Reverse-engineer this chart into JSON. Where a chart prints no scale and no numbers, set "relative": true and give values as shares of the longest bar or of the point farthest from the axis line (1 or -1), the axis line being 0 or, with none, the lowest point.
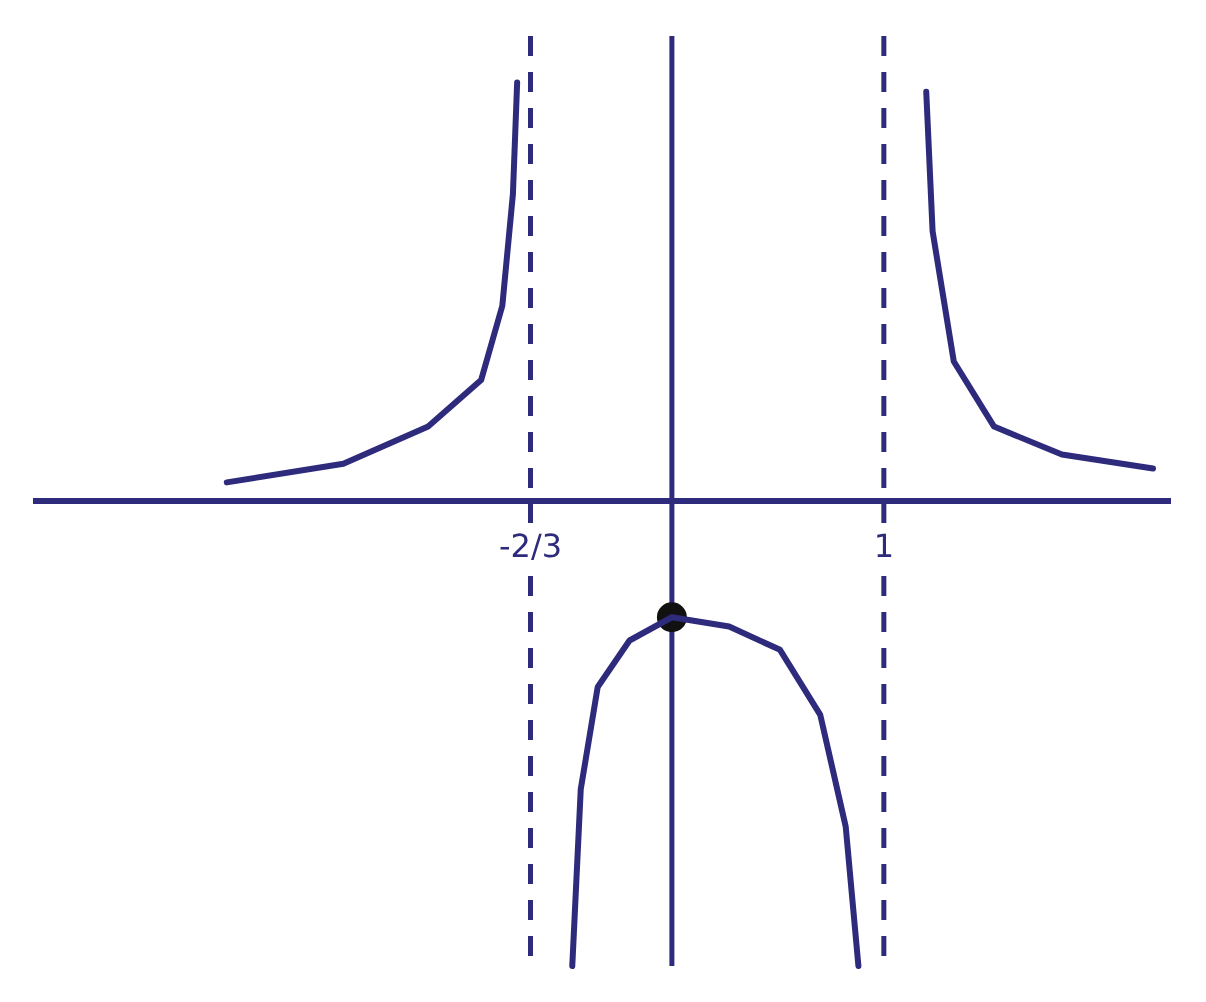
{
  "chart_data": {
    "type": "line",
    "relative": true,
    "xlim": [
      -3,
      2.35
    ],
    "xticks": [
      {
        "value": -0.667,
        "label": "-2/3"
      },
      1
    ],
    "tick_labels": "x",
    "grid": false,
    "legend": false,
    "marker": "none",
    "line_style": "solid",
    "series": [
      {
        "color": "#2e2a7c",
        "x": [
          -2.1,
          -1.55,
          -1.15,
          -0.9,
          -0.8,
          -0.75,
          -0.73
        ],
        "values": [
          0.04,
          0.08,
          0.16,
          0.26,
          0.42,
          0.66,
          0.9
        ]
      },
      {
        "color": "#2e2a7c",
        "x": [
          -0.47,
          -0.43,
          -0.35,
          -0.2,
          0,
          0.27,
          0.51,
          0.7,
          0.82,
          0.88
        ],
        "values": [
          -1,
          -0.62,
          -0.4,
          -0.3,
          -0.25,
          -0.27,
          -0.32,
          -0.46,
          -0.7,
          -1
        ]
      },
      {
        "color": "#2e2a7c",
        "x": [
          1.2,
          1.23,
          1.33,
          1.52,
          1.84,
          2.27
        ],
        "values": [
          0.88,
          0.58,
          0.3,
          0.16,
          0.1,
          0.07
        ]
      },
      {
        "type": "scatter",
        "marker": "circle",
        "color": "#111111",
        "x": [
          0
        ],
        "values": [
          -0.25
        ]
      }
    ],
    "ref_lines": [
      {
        "axis": "x",
        "value": 0,
        "color": "#2e2a7c",
        "line_style": "solid"
      },
      {
        "axis": "x",
        "value": -0.667,
        "color": "#2e2a7c",
        "line_style": "dashed"
      },
      {
        "axis": "x",
        "value": 1,
        "color": "#2e2a7c",
        "line_style": "dashed"
      }
    ]
  }
}
